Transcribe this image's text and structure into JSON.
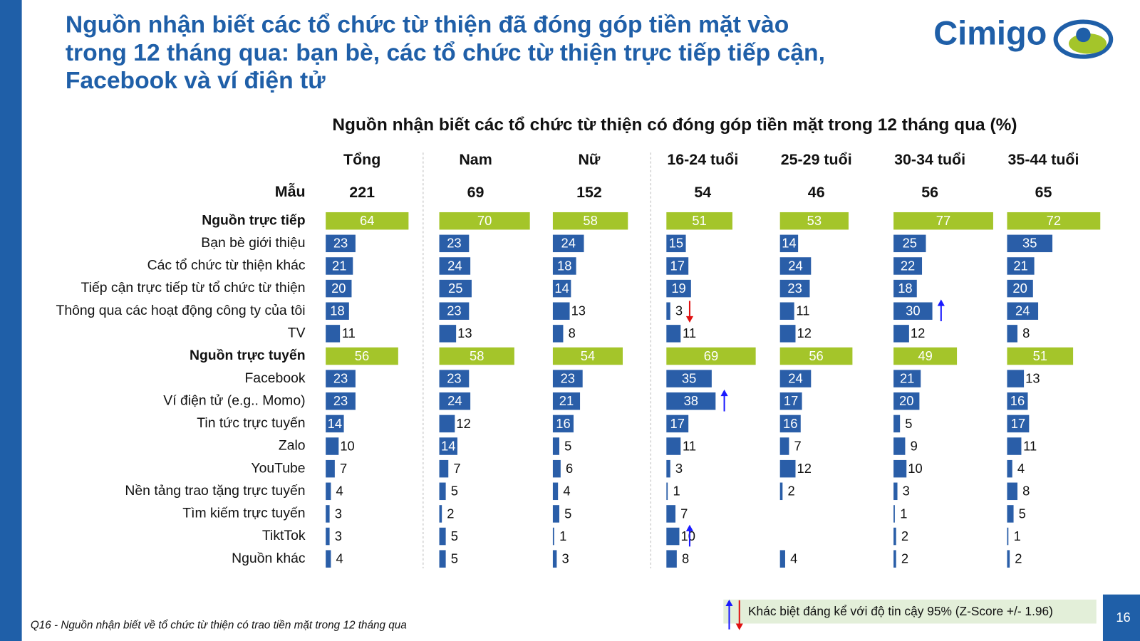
{
  "header": {
    "title_lines": [
      "Nguồn nhận biết các tổ chức từ thiện đã đóng góp tiền mặt vào",
      "trong 12 tháng qua: bạn bè, các tổ chức từ thiện trực tiếp tiếp cận,",
      "Facebook và ví điện tử"
    ],
    "logo": "Cimigo"
  },
  "chart_data": {
    "type": "bar",
    "title": "Nguồn nhận biết các tổ chức từ thiện có đóng góp tiền mặt trong 12 tháng qua (%)",
    "sample_label": "Mẫu",
    "categories": [
      "Nguồn trực tiếp",
      "Bạn bè giới thiệu",
      "Các tổ chức từ thiện khác",
      "Tiếp cận trực tiếp từ tổ chức từ thiện",
      "Thông qua các hoạt động công ty của tôi",
      "TV",
      "Nguồn trực tuyến",
      "Facebook",
      "Ví điện tử (e.g.. Momo)",
      "Tin tức trực tuyến",
      "Zalo",
      "YouTube",
      "Nền tảng trao tặng trực tuyến",
      "Tìm kiếm trực tuyến",
      "TiktTok",
      "Nguồn khác"
    ],
    "highlight_rows": [
      0,
      6
    ],
    "color": "#2a5ea8",
    "highlight_color": "#a4c52a",
    "series": [
      {
        "name": "Tổng",
        "sample": 221,
        "values": [
          64,
          23,
          21,
          20,
          18,
          11,
          56,
          23,
          23,
          14,
          10,
          7,
          4,
          3,
          3,
          4
        ]
      },
      {
        "name": "Nam",
        "sample": 69,
        "values": [
          70,
          23,
          24,
          25,
          23,
          13,
          58,
          23,
          24,
          12,
          14,
          7,
          5,
          2,
          5,
          5
        ]
      },
      {
        "name": "Nữ",
        "sample": 152,
        "values": [
          58,
          24,
          18,
          14,
          13,
          8,
          54,
          23,
          21,
          16,
          5,
          6,
          4,
          5,
          1,
          3
        ]
      },
      {
        "name": "16-24 tuổi",
        "sample": 54,
        "values": [
          51,
          15,
          17,
          19,
          3,
          11,
          69,
          35,
          38,
          17,
          11,
          3,
          1,
          7,
          10,
          8
        ]
      },
      {
        "name": "25-29 tuổi",
        "sample": 46,
        "values": [
          53,
          14,
          24,
          23,
          11,
          12,
          56,
          24,
          17,
          16,
          7,
          12,
          2,
          null,
          null,
          4
        ]
      },
      {
        "name": "30-34 tuổi",
        "sample": 56,
        "values": [
          77,
          25,
          22,
          18,
          30,
          12,
          49,
          21,
          20,
          5,
          9,
          10,
          3,
          1,
          2,
          2
        ]
      },
      {
        "name": "35-44 tuổi",
        "sample": 65,
        "values": [
          72,
          35,
          21,
          20,
          24,
          8,
          51,
          13,
          16,
          17,
          11,
          4,
          8,
          5,
          1,
          2
        ]
      }
    ],
    "significance": [
      {
        "series": 3,
        "row": 4,
        "direction": "down"
      },
      {
        "series": 5,
        "row": 4,
        "direction": "up"
      },
      {
        "series": 3,
        "row": 8,
        "direction": "up"
      },
      {
        "series": 3,
        "row": 14,
        "direction": "up"
      }
    ],
    "up_color": "#1a1aff",
    "down_color": "#e01010"
  },
  "legend": {
    "text": "Khác biệt đáng kể với độ tin cậy 95%  (Z-Score +/- 1.96)"
  },
  "footnote": "Q16 - Nguồn nhận biết về tổ chức từ thiện có trao tiền mặt trong 12 tháng qua",
  "page_number": "16"
}
